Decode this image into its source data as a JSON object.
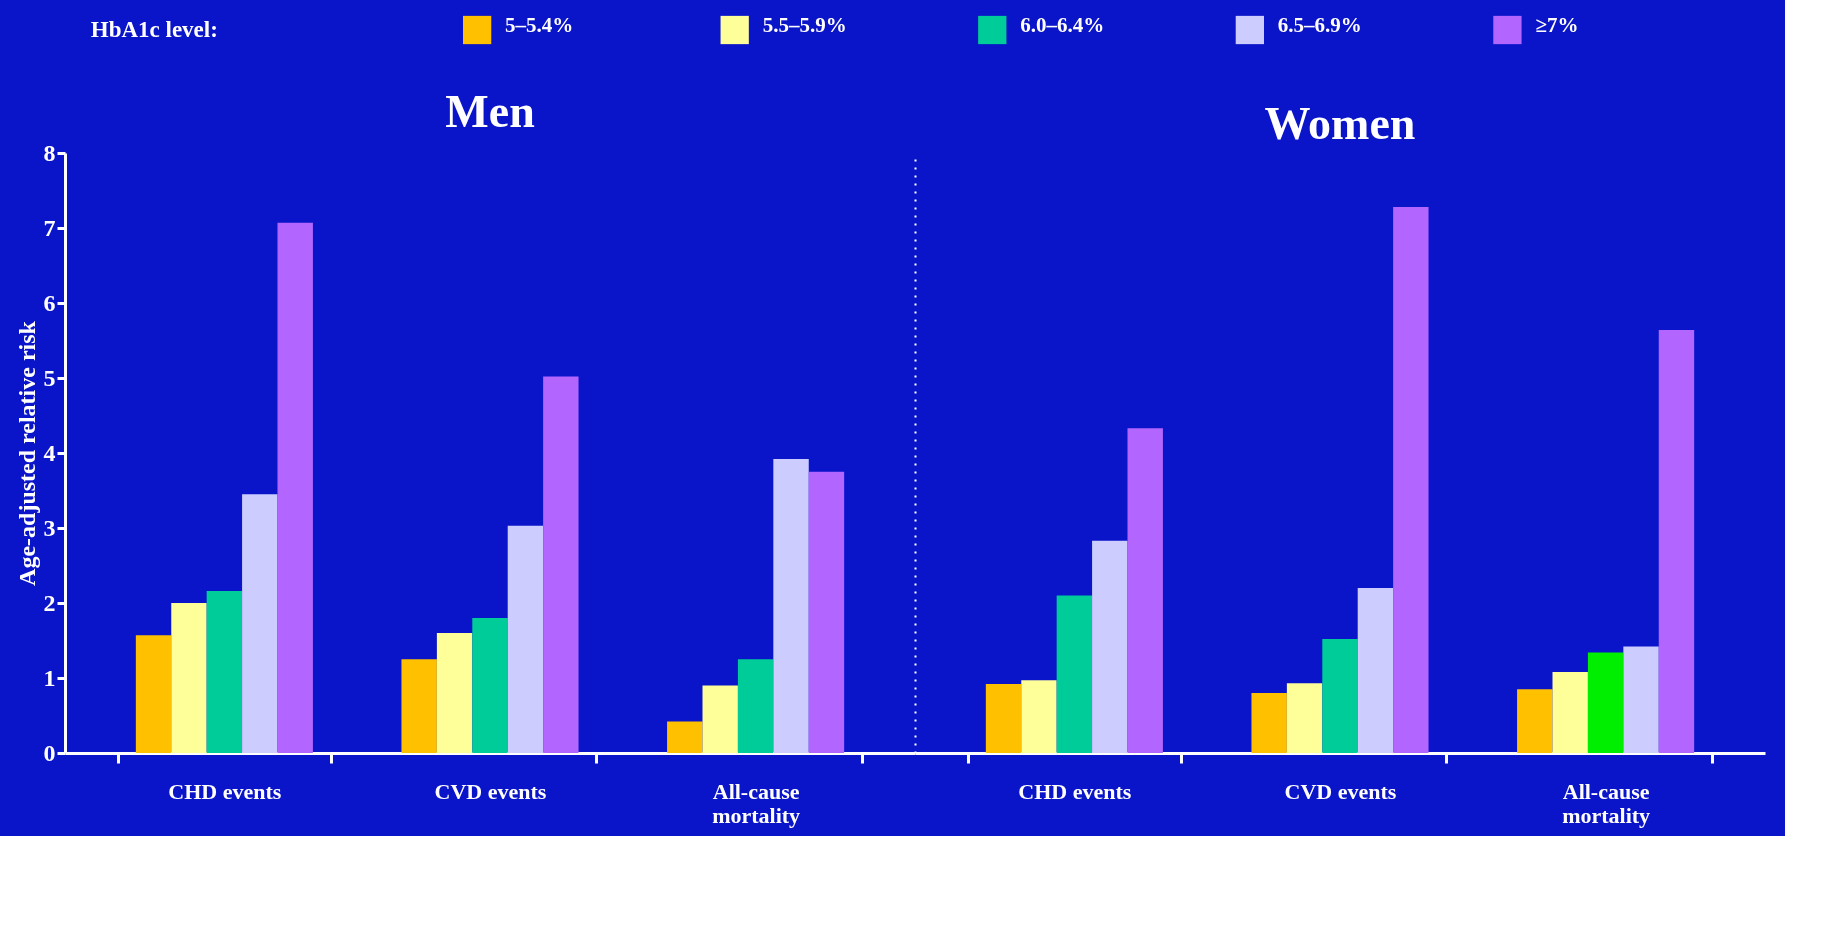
{
  "chart_data": [
    {
      "type": "bar",
      "title": "Men",
      "ylabel": "Age-adjusted relative risk",
      "legend_title": "HbA1c level:",
      "legend": "top",
      "categories": [
        "CHD events",
        "CVD events",
        "All-cause mortality"
      ],
      "ylim": [
        0,
        8
      ],
      "yticks": [
        0,
        1,
        2,
        3,
        4,
        5,
        6,
        7,
        8
      ],
      "grid": false,
      "series": [
        {
          "name": "5–5.4%",
          "color": "#ffc000",
          "values": [
            1.57,
            1.25,
            0.42
          ]
        },
        {
          "name": "5.5–5.9%",
          "color": "#ffff99",
          "values": [
            2.0,
            1.6,
            0.9
          ]
        },
        {
          "name": "6.0–6.4%",
          "color": "#00cc99",
          "values": [
            2.16,
            1.8,
            1.25
          ]
        },
        {
          "name": "6.5–6.9%",
          "color": "#ccccff",
          "values": [
            3.45,
            3.03,
            3.92
          ]
        },
        {
          "name": "≥7%",
          "color": "#b366ff",
          "values": [
            7.07,
            5.02,
            3.75
          ]
        }
      ]
    },
    {
      "type": "bar",
      "title": "Women",
      "tick_labels": "x",
      "categories": [
        "CHD events",
        "CVD events",
        "All-cause mortality"
      ],
      "ylim": [
        0,
        8
      ],
      "grid": false,
      "series": [
        {
          "color": "#ffc000",
          "values": [
            0.92,
            0.8,
            0.85
          ]
        },
        {
          "color": "#ffff99",
          "values": [
            0.97,
            0.93,
            1.08
          ]
        },
        {
          "color": "#00cc99",
          "colors": [
            null,
            null,
            "#00ee00"
          ],
          "values": [
            2.1,
            1.52,
            1.34
          ]
        },
        {
          "color": "#ccccff",
          "values": [
            2.83,
            2.2,
            1.42
          ]
        },
        {
          "color": "#b366ff",
          "values": [
            4.33,
            7.28,
            5.64
          ]
        }
      ]
    }
  ]
}
